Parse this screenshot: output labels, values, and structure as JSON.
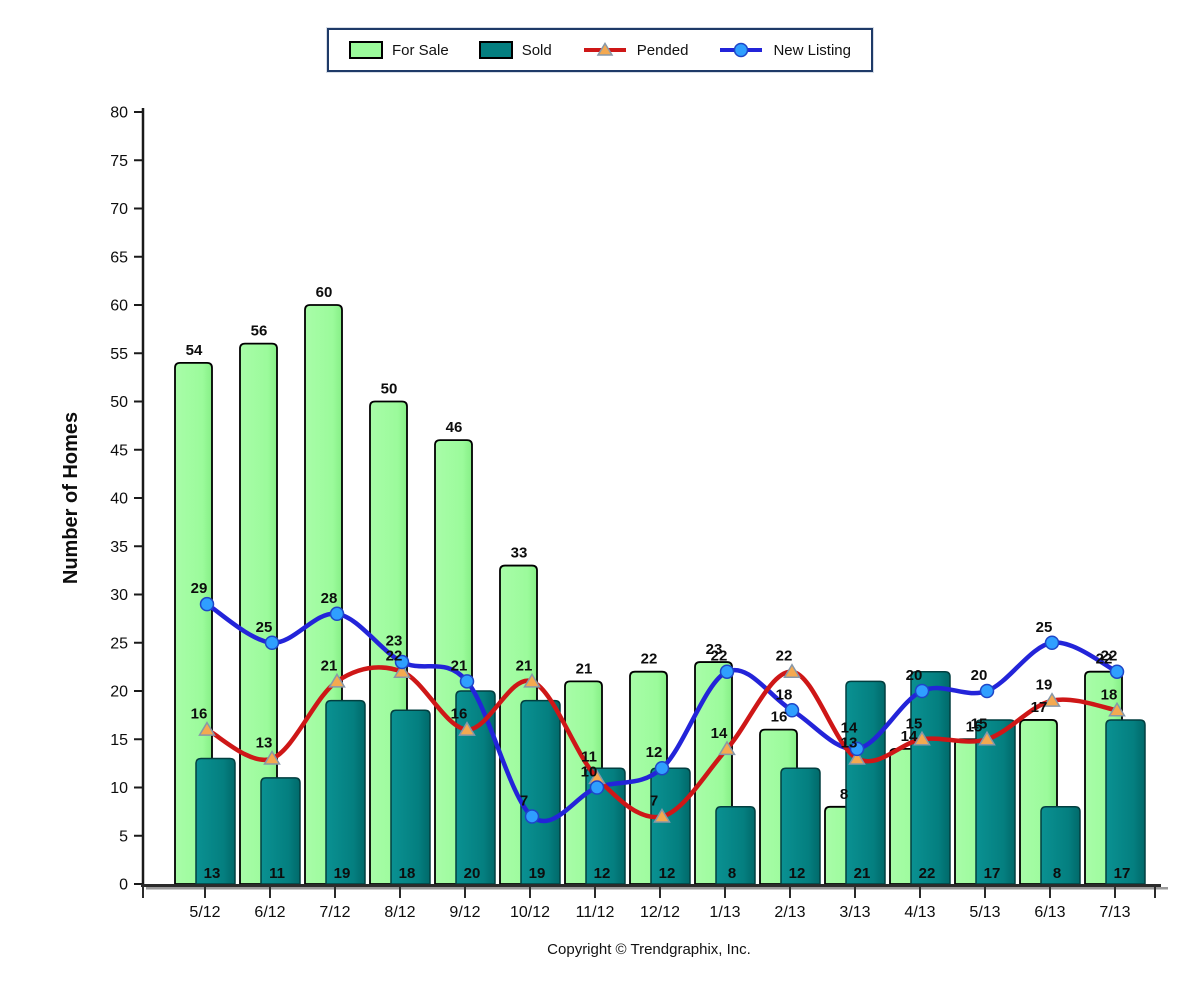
{
  "legend": {
    "items": [
      {
        "label": "For Sale",
        "swatch": "bar-green-swatch"
      },
      {
        "label": "Sold",
        "swatch": "bar-teal-swatch"
      },
      {
        "label": "Pended",
        "swatch": "red-line-triangle-swatch"
      },
      {
        "label": "New Listing",
        "swatch": "blue-line-circle-swatch"
      }
    ]
  },
  "chart_data": {
    "type": "bar",
    "subtype": "combo-bar-line",
    "categories": [
      "5/12",
      "6/12",
      "7/12",
      "8/12",
      "9/12",
      "10/12",
      "11/12",
      "12/12",
      "1/13",
      "2/13",
      "3/13",
      "4/13",
      "5/13",
      "6/13",
      "7/13"
    ],
    "series": [
      {
        "name": "For Sale",
        "type": "bar",
        "color": "#9bfb9b",
        "edge": "#000000",
        "values": [
          54,
          56,
          60,
          50,
          46,
          33,
          21,
          22,
          23,
          16,
          8,
          14,
          15,
          17,
          22
        ]
      },
      {
        "name": "Sold",
        "type": "bar",
        "color": "#047f80",
        "edge": "#023f40",
        "values": [
          13,
          11,
          19,
          18,
          20,
          19,
          12,
          12,
          8,
          12,
          21,
          22,
          17,
          8,
          17
        ]
      },
      {
        "name": "Pended",
        "type": "line",
        "color": "#ce1717",
        "marker": "triangle",
        "marker_fill": "#f4a950",
        "marker_stroke": "#8898a8",
        "values": [
          16,
          13,
          21,
          22,
          16,
          21,
          11,
          7,
          14,
          22,
          13,
          15,
          15,
          19,
          18
        ]
      },
      {
        "name": "New Listing",
        "type": "line",
        "color": "#2324d9",
        "marker": "circle",
        "marker_fill": "#2f9fff",
        "marker_stroke": "#1e46c8",
        "values": [
          29,
          25,
          28,
          23,
          21,
          7,
          10,
          12,
          22,
          18,
          14,
          20,
          20,
          25,
          22
        ]
      }
    ],
    "title": "",
    "xlabel": "",
    "ylabel": "Number of Homes",
    "ylim": [
      0,
      80
    ],
    "ytick_step": 5,
    "grid": false,
    "legend_position": "top-center",
    "axis_color": "#1a1a1a"
  },
  "footer": {
    "copyright": "Copyright © Trendgraphix, Inc."
  }
}
